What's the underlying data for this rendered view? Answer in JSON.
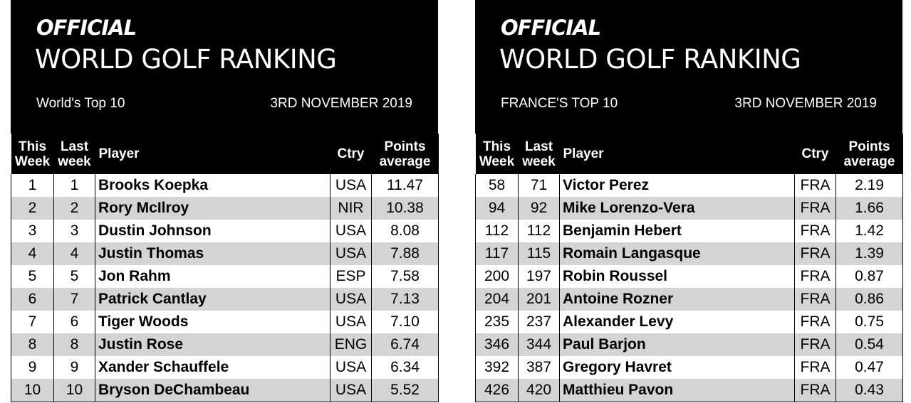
{
  "panels": [
    {
      "official": "OFFICIAL",
      "ranking_title": "WORLD GOLF RANKING",
      "subtitle": "World's Top 10",
      "date": "3RD NOVEMBER 2019",
      "columns": {
        "this_week": [
          "This",
          "Week"
        ],
        "last_week": [
          "Last",
          "week"
        ],
        "player": "Player",
        "ctry": "Ctry",
        "points": [
          "Points",
          "average"
        ]
      },
      "rows": [
        {
          "this_week": "1",
          "last_week": "1",
          "player": "Brooks Koepka",
          "ctry": "USA",
          "points": "11.47"
        },
        {
          "this_week": "2",
          "last_week": "2",
          "player": "Rory McIlroy",
          "ctry": "NIR",
          "points": "10.38"
        },
        {
          "this_week": "3",
          "last_week": "3",
          "player": "Dustin Johnson",
          "ctry": "USA",
          "points": "8.08"
        },
        {
          "this_week": "4",
          "last_week": "4",
          "player": "Justin Thomas",
          "ctry": "USA",
          "points": "7.88"
        },
        {
          "this_week": "5",
          "last_week": "5",
          "player": "Jon Rahm",
          "ctry": "ESP",
          "points": "7.58"
        },
        {
          "this_week": "6",
          "last_week": "7",
          "player": "Patrick Cantlay",
          "ctry": "USA",
          "points": "7.13"
        },
        {
          "this_week": "7",
          "last_week": "6",
          "player": "Tiger Woods",
          "ctry": "USA",
          "points": "7.10"
        },
        {
          "this_week": "8",
          "last_week": "8",
          "player": "Justin Rose",
          "ctry": "ENG",
          "points": "6.74"
        },
        {
          "this_week": "9",
          "last_week": "9",
          "player": "Xander Schauffele",
          "ctry": "USA",
          "points": "6.34"
        },
        {
          "this_week": "10",
          "last_week": "10",
          "player": "Bryson DeChambeau",
          "ctry": "USA",
          "points": "5.52"
        }
      ]
    },
    {
      "official": "OFFICIAL",
      "ranking_title": "WORLD GOLF RANKING",
      "subtitle": "FRANCE'S TOP 10",
      "date": "3RD NOVEMBER 2019",
      "columns": {
        "this_week": [
          "This",
          "Week"
        ],
        "last_week": [
          "Last",
          "week"
        ],
        "player": "Player",
        "ctry": "Ctry",
        "points": [
          "Points",
          "average"
        ]
      },
      "rows": [
        {
          "this_week": "58",
          "last_week": "71",
          "player": "Victor Perez",
          "ctry": "FRA",
          "points": "2.19"
        },
        {
          "this_week": "94",
          "last_week": "92",
          "player": "Mike Lorenzo-Vera",
          "ctry": "FRA",
          "points": "1.66"
        },
        {
          "this_week": "112",
          "last_week": "112",
          "player": "Benjamin Hebert",
          "ctry": "FRA",
          "points": "1.42"
        },
        {
          "this_week": "117",
          "last_week": "115",
          "player": "Romain Langasque",
          "ctry": "FRA",
          "points": "1.39"
        },
        {
          "this_week": "200",
          "last_week": "197",
          "player": "Robin Roussel",
          "ctry": "FRA",
          "points": "0.87"
        },
        {
          "this_week": "204",
          "last_week": "201",
          "player": "Antoine Rozner",
          "ctry": "FRA",
          "points": "0.86"
        },
        {
          "this_week": "235",
          "last_week": "237",
          "player": "Alexander Levy",
          "ctry": "FRA",
          "points": "0.75"
        },
        {
          "this_week": "346",
          "last_week": "344",
          "player": "Paul Barjon",
          "ctry": "FRA",
          "points": "0.54"
        },
        {
          "this_week": "392",
          "last_week": "387",
          "player": "Gregory Havret",
          "ctry": "FRA",
          "points": "0.47"
        },
        {
          "this_week": "426",
          "last_week": "420",
          "player": "Matthieu Pavon",
          "ctry": "FRA",
          "points": "0.43"
        }
      ]
    }
  ]
}
